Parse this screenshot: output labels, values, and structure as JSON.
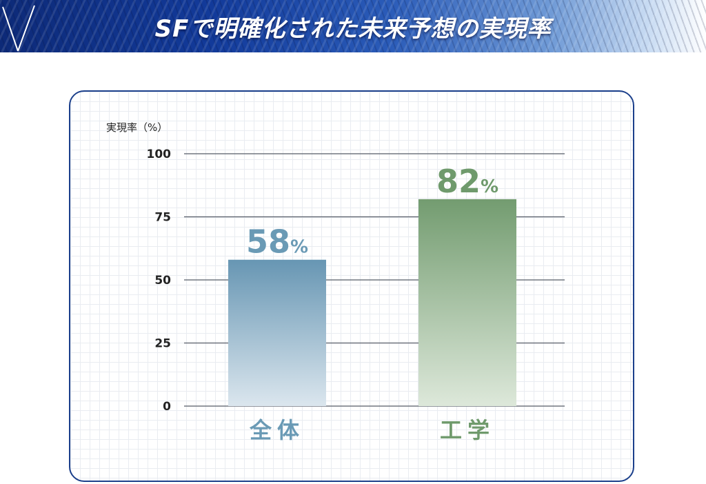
{
  "header": {
    "title": "SFで明確化された未来予想の実現率"
  },
  "chart_data": {
    "type": "bar",
    "ylabel": "実現率（%）",
    "ylim": [
      0,
      100
    ],
    "yticks": [
      0,
      25,
      50,
      75,
      100
    ],
    "categories": [
      "全体",
      "工学"
    ],
    "values": [
      58,
      82
    ],
    "value_suffix": "%",
    "colors": {
      "全体": "#6a9ab5",
      "工学": "#6f9a6c"
    },
    "grid": true
  }
}
